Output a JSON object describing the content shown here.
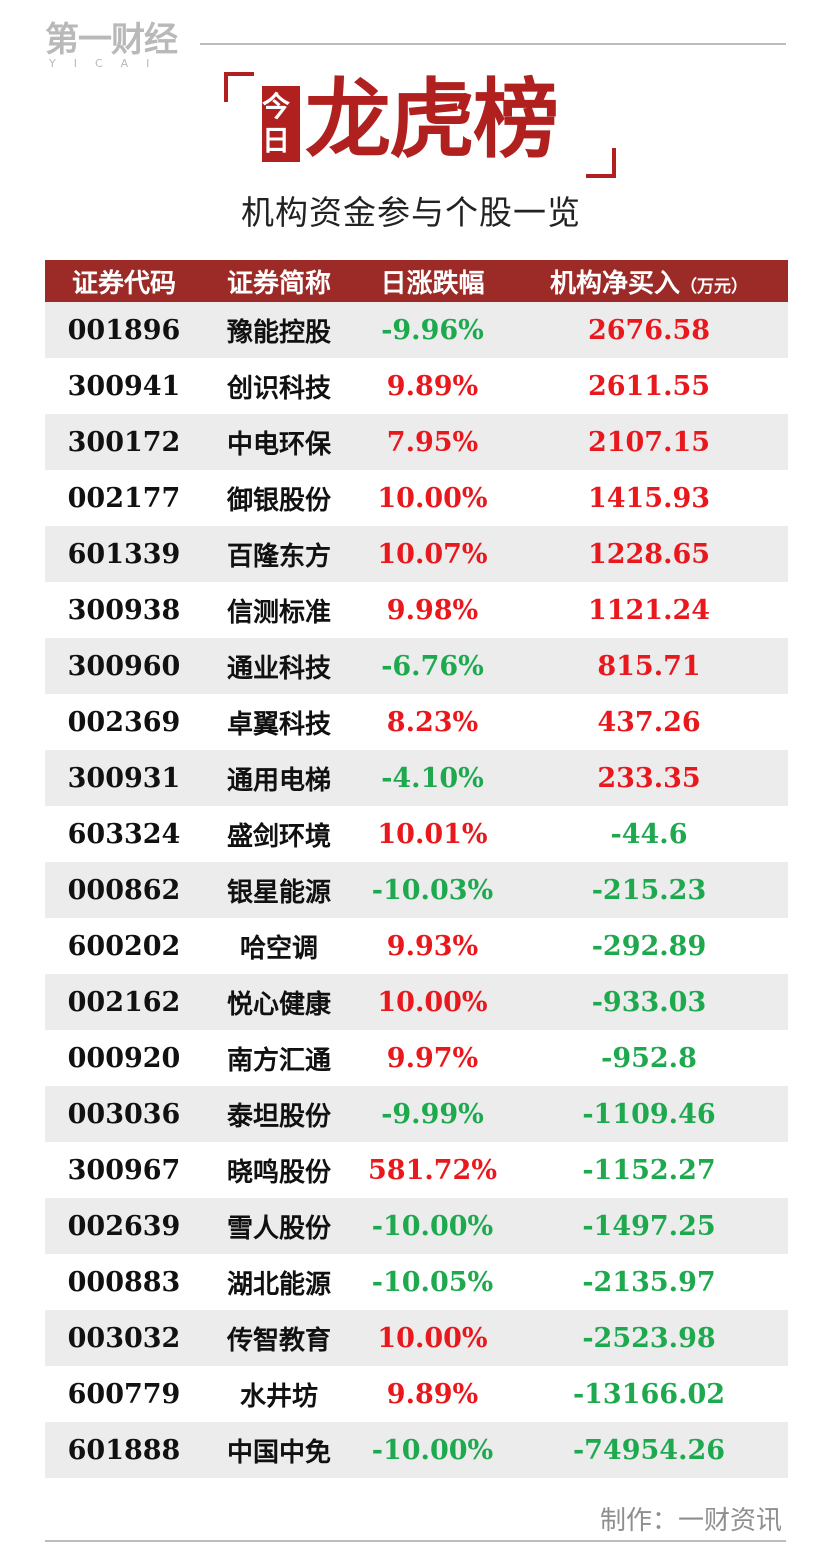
{
  "logo": {
    "main": "第一财经",
    "sub": "YICAI"
  },
  "title": {
    "bracket_text": "今日",
    "main": "龙虎榜",
    "subtitle": "机构资金参与个股一览"
  },
  "table": {
    "headers": [
      "证券代码",
      "证券简称",
      "日涨跌幅",
      "机构净买入"
    ],
    "unit": "（万元）",
    "rows": [
      {
        "code": "001896",
        "name": "豫能控股",
        "change": "-9.96%",
        "net": "2676.58"
      },
      {
        "code": "300941",
        "name": "创识科技",
        "change": "9.89%",
        "net": "2611.55"
      },
      {
        "code": "300172",
        "name": "中电环保",
        "change": "7.95%",
        "net": "2107.15"
      },
      {
        "code": "002177",
        "name": "御银股份",
        "change": "10.00%",
        "net": "1415.93"
      },
      {
        "code": "601339",
        "name": "百隆东方",
        "change": "10.07%",
        "net": "1228.65"
      },
      {
        "code": "300938",
        "name": "信测标准",
        "change": "9.98%",
        "net": "1121.24"
      },
      {
        "code": "300960",
        "name": "通业科技",
        "change": "-6.76%",
        "net": "815.71"
      },
      {
        "code": "002369",
        "name": "卓翼科技",
        "change": "8.23%",
        "net": "437.26"
      },
      {
        "code": "300931",
        "name": "通用电梯",
        "change": "-4.10%",
        "net": "233.35"
      },
      {
        "code": "603324",
        "name": "盛剑环境",
        "change": "10.01%",
        "net": "-44.6"
      },
      {
        "code": "000862",
        "name": "银星能源",
        "change": "-10.03%",
        "net": "-215.23"
      },
      {
        "code": "600202",
        "name": "哈空调",
        "change": "9.93%",
        "net": "-292.89"
      },
      {
        "code": "002162",
        "name": "悦心健康",
        "change": "10.00%",
        "net": "-933.03"
      },
      {
        "code": "000920",
        "name": "南方汇通",
        "change": "9.97%",
        "net": "-952.8"
      },
      {
        "code": "003036",
        "name": "泰坦股份",
        "change": "-9.99%",
        "net": "-1109.46"
      },
      {
        "code": "300967",
        "name": "晓鸣股份",
        "change": "581.72%",
        "net": "-1152.27"
      },
      {
        "code": "002639",
        "name": "雪人股份",
        "change": "-10.00%",
        "net": "-1497.25"
      },
      {
        "code": "000883",
        "name": "湖北能源",
        "change": "-10.05%",
        "net": "-2135.97"
      },
      {
        "code": "003032",
        "name": "传智教育",
        "change": "10.00%",
        "net": "-2523.98"
      },
      {
        "code": "600779",
        "name": "水井坊",
        "change": "9.89%",
        "net": "-13166.02"
      },
      {
        "code": "601888",
        "name": "中国中免",
        "change": "-10.00%",
        "net": "-74954.26"
      }
    ]
  },
  "credit": "制作：一财资讯",
  "colors": {
    "header_bg": "#9c2b28",
    "brand_red": "#b0201f",
    "up": "#e8181d",
    "down": "#1ea94f",
    "stripe": "#ececec"
  }
}
